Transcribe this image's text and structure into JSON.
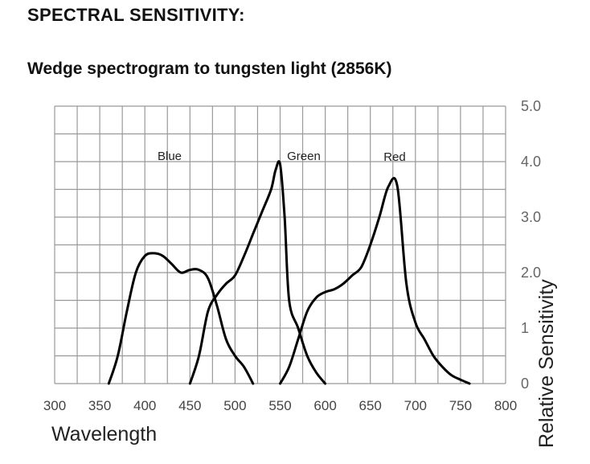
{
  "header": {
    "title": "SPECTRAL SENSITIVITY:",
    "subtitle": "Wedge spectrogram to tungsten light (2856K)"
  },
  "chart_data": {
    "type": "line",
    "title": "Wedge spectrogram to tungsten light (2856K)",
    "xlabel": "Wavelength",
    "ylabel": "Relative Sensitivity",
    "xlim": [
      300,
      800
    ],
    "ylim": [
      0,
      5
    ],
    "x_ticks": [
      "300",
      "350",
      "400",
      "450",
      "500",
      "550",
      "600",
      "650",
      "700",
      "750",
      "800"
    ],
    "y_ticks": [
      "0",
      "1",
      "2.0",
      "3.0",
      "4.0",
      "5.0"
    ],
    "grid": true,
    "y_axis_position": "right",
    "series": [
      {
        "name": "Blue",
        "x": [
          360,
          370,
          380,
          390,
          400,
          410,
          420,
          430,
          440,
          450,
          460,
          470,
          480,
          490,
          500,
          510,
          520
        ],
        "y": [
          0,
          0.5,
          1.3,
          2.0,
          2.3,
          2.35,
          2.3,
          2.15,
          2.0,
          2.05,
          2.05,
          1.9,
          1.4,
          0.8,
          0.5,
          0.3,
          0
        ]
      },
      {
        "name": "Green",
        "x": [
          450,
          460,
          470,
          480,
          490,
          500,
          510,
          520,
          530,
          540,
          545,
          550,
          555,
          560,
          570,
          580,
          590,
          600
        ],
        "y": [
          0,
          0.5,
          1.3,
          1.6,
          1.8,
          1.95,
          2.3,
          2.7,
          3.1,
          3.5,
          3.85,
          3.95,
          3.0,
          1.5,
          1.0,
          0.5,
          0.2,
          0
        ]
      },
      {
        "name": "Red",
        "x": [
          550,
          560,
          570,
          580,
          590,
          600,
          610,
          620,
          630,
          640,
          650,
          660,
          670,
          680,
          690,
          700,
          710,
          720,
          730,
          740,
          750,
          760
        ],
        "y": [
          0,
          0.3,
          0.8,
          1.3,
          1.55,
          1.65,
          1.7,
          1.8,
          1.95,
          2.1,
          2.5,
          3.0,
          3.55,
          3.55,
          1.8,
          1.1,
          0.8,
          0.5,
          0.3,
          0.15,
          0.07,
          0
        ]
      }
    ]
  }
}
